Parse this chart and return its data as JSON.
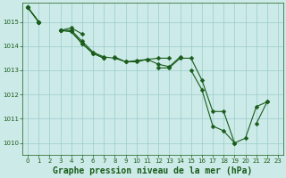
{
  "background_color": "#cceae7",
  "line_color": "#1a5c1a",
  "grid_color": "#99cccc",
  "title": "Graphe pression niveau de la mer (hPa)",
  "xlim": [
    -0.5,
    23.5
  ],
  "ylim": [
    1009.5,
    1015.8
  ],
  "yticks": [
    1010,
    1011,
    1012,
    1013,
    1014,
    1015
  ],
  "xticks": [
    0,
    1,
    2,
    3,
    4,
    5,
    6,
    7,
    8,
    9,
    10,
    11,
    12,
    13,
    14,
    15,
    16,
    17,
    18,
    19,
    20,
    21,
    22,
    23
  ],
  "line_width": 0.8,
  "marker_size": 2.5,
  "title_fontsize": 7,
  "tick_fontsize": 5,
  "lines": [
    [
      1015.6,
      1015.0,
      null,
      1014.65,
      1014.75,
      1014.5,
      null,
      null,
      1013.55,
      1013.35,
      1013.4,
      1013.45,
      1013.25,
      1013.15,
      1013.55,
      null,
      null,
      null,
      null,
      null,
      null,
      null,
      null,
      null
    ],
    [
      1015.6,
      1015.0,
      null,
      1014.65,
      1014.65,
      1014.2,
      1013.75,
      1013.55,
      1013.5,
      1013.35,
      1013.35,
      1013.45,
      1013.5,
      1013.5,
      null,
      null,
      null,
      null,
      null,
      null,
      null,
      null,
      null,
      null
    ],
    [
      1015.6,
      1015.0,
      null,
      1014.65,
      1014.6,
      1014.1,
      1013.7,
      1013.5,
      null,
      null,
      null,
      null,
      1013.1,
      1013.1,
      1013.5,
      1013.5,
      1012.6,
      1011.3,
      1011.3,
      1010.0,
      1010.2,
      1011.5,
      1011.7,
      null
    ],
    [
      1015.6,
      1015.0,
      null,
      1014.65,
      1014.6,
      1014.1,
      1013.7,
      1013.5,
      null,
      null,
      null,
      null,
      null,
      null,
      null,
      1013.0,
      1012.2,
      1010.7,
      1010.5,
      1010.0,
      null,
      1010.8,
      1011.7,
      null
    ]
  ]
}
